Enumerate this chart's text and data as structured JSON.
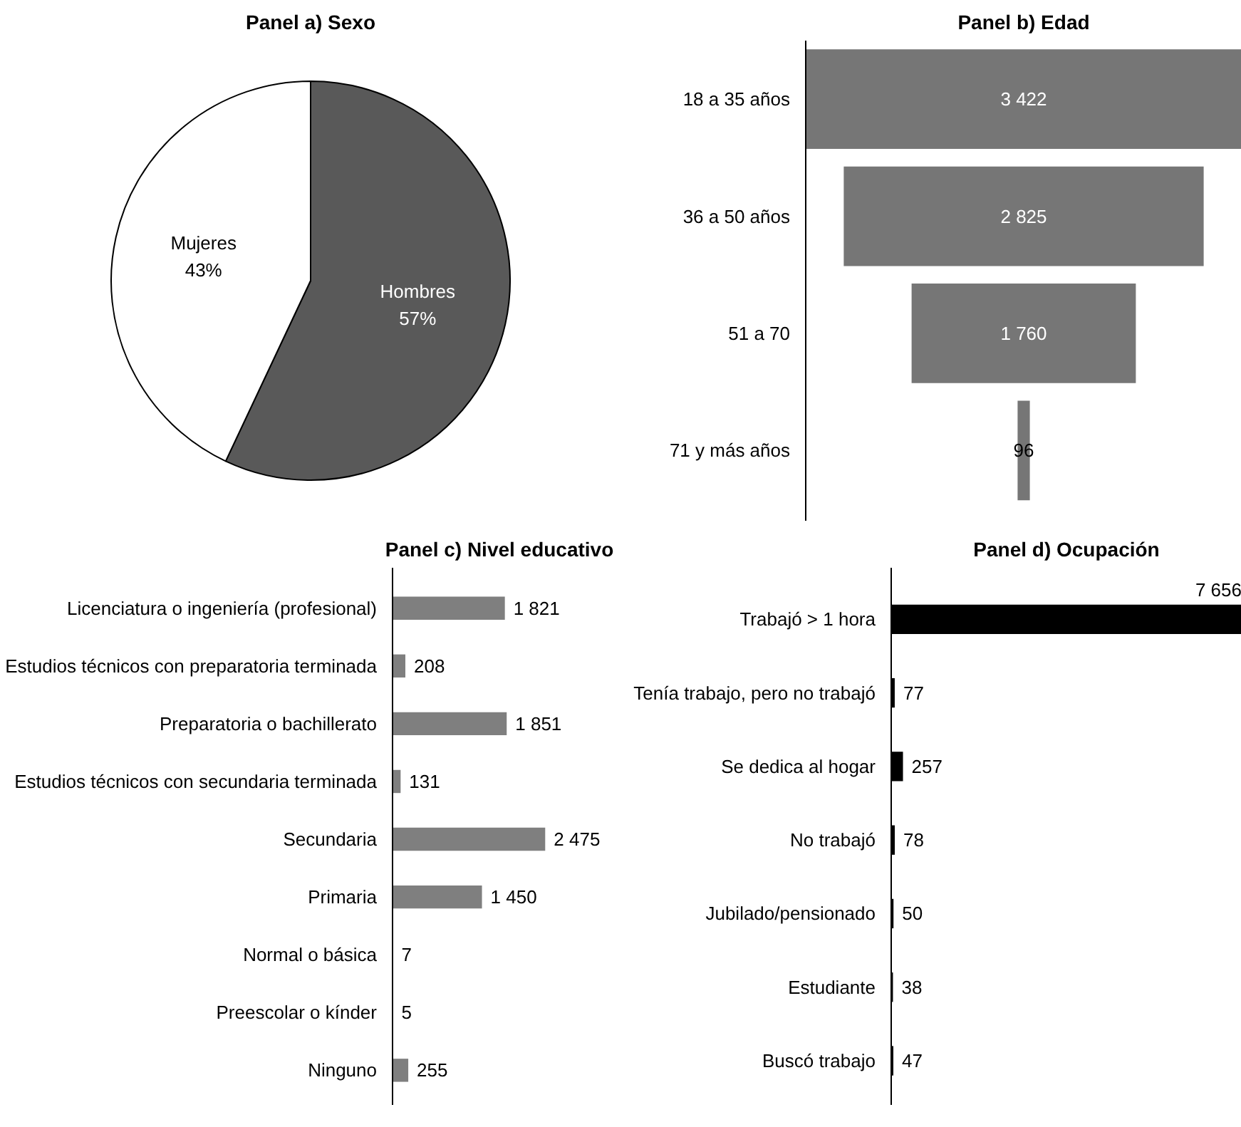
{
  "chart_data": [
    {
      "type": "pie",
      "title": "Panel a) Sexo",
      "categories": [
        "Hombres",
        "Mujeres"
      ],
      "values": [
        57,
        43
      ],
      "colors": [
        "#595959",
        "#ffffff"
      ],
      "value_labels": [
        "57%",
        "43%"
      ]
    },
    {
      "type": "other",
      "title": "Panel b) Edad",
      "categories": [
        "18 a 35 años",
        "36 a 50 años",
        "51 a 70",
        "71 y más años"
      ],
      "values": [
        3422,
        2825,
        1760,
        96
      ],
      "color": "#767676",
      "value_labels": [
        "3 422",
        "2 825",
        "1 760",
        "96"
      ]
    },
    {
      "type": "bar",
      "orientation": "horizontal",
      "title": "Panel c) Nivel educativo",
      "categories": [
        "Licenciatura o ingeniería (profesional)",
        "Estudios técnicos con preparatoria terminada",
        "Preparatoria o bachillerato",
        "Estudios técnicos con secundaria terminada",
        "Secundaria",
        "Primaria",
        "Normal o básica",
        "Preescolar o kínder",
        "Ninguno"
      ],
      "values": [
        1821,
        208,
        1851,
        131,
        2475,
        1450,
        7,
        5,
        255
      ],
      "color": "#7f7f7f",
      "value_labels": [
        "1 821",
        "208",
        "1 851",
        "131",
        "2 475",
        "1 450",
        "7",
        "5",
        "255"
      ]
    },
    {
      "type": "bar",
      "orientation": "horizontal",
      "title": "Panel d) Ocupación",
      "categories": [
        "Trabajó > 1 hora",
        "Tenía trabajo, pero no trabajó",
        "Se dedica al hogar",
        "No trabajó",
        "Jubilado/pensionado",
        "Estudiante",
        "Buscó trabajo"
      ],
      "values": [
        7656,
        77,
        257,
        78,
        50,
        38,
        47
      ],
      "color": "#000000",
      "value_labels": [
        "7 656",
        "77",
        "257",
        "78",
        "50",
        "38",
        "47"
      ]
    }
  ]
}
